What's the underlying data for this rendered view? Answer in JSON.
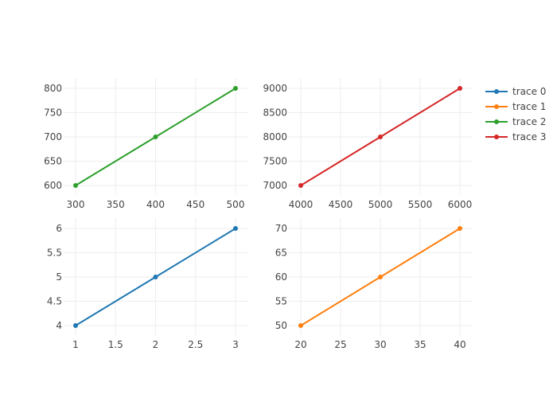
{
  "chart_data": {
    "type": "line",
    "legend": {
      "placement": "top-right",
      "entries": [
        {
          "name": "trace 0",
          "color": "#1f77b4"
        },
        {
          "name": "trace 1",
          "color": "#ff7f0e"
        },
        {
          "name": "trace 2",
          "color": "#2ca02c"
        },
        {
          "name": "trace 3",
          "color": "#d62728"
        }
      ]
    },
    "grid": true,
    "subplots": [
      {
        "id": "top-left",
        "series": [
          {
            "name": "trace 2",
            "color": "#2ca02c",
            "x": [
              300,
              400,
              500
            ],
            "y": [
              600,
              700,
              800
            ]
          }
        ],
        "xlim": [
          300,
          500
        ],
        "ylim": [
          600,
          800
        ],
        "xticks": [
          300,
          350,
          400,
          450,
          500
        ],
        "xtick_labels": [
          "300",
          "350",
          "400",
          "450",
          "500"
        ],
        "yticks": [
          600,
          650,
          700,
          750,
          800
        ],
        "ytick_labels": [
          "600",
          "650",
          "700",
          "750",
          "800"
        ]
      },
      {
        "id": "top-right",
        "series": [
          {
            "name": "trace 3",
            "color": "#d62728",
            "x": [
              4000,
              5000,
              6000
            ],
            "y": [
              7000,
              8000,
              9000
            ]
          }
        ],
        "xlim": [
          4000,
          6000
        ],
        "ylim": [
          7000,
          9000
        ],
        "xticks": [
          4000,
          4500,
          5000,
          5500,
          6000
        ],
        "xtick_labels": [
          "4000",
          "4500",
          "5000",
          "5500",
          "6000"
        ],
        "yticks": [
          7000,
          7500,
          8000,
          8500,
          9000
        ],
        "ytick_labels": [
          "7000",
          "7500",
          "8000",
          "8500",
          "9000"
        ]
      },
      {
        "id": "bottom-left",
        "series": [
          {
            "name": "trace 0",
            "color": "#1f77b4",
            "x": [
              1,
              2,
              3
            ],
            "y": [
              4,
              5,
              6
            ]
          }
        ],
        "xlim": [
          1,
          3
        ],
        "ylim": [
          4,
          6
        ],
        "xticks": [
          1,
          1.5,
          2,
          2.5,
          3
        ],
        "xtick_labels": [
          "1",
          "1.5",
          "2",
          "2.5",
          "3"
        ],
        "yticks": [
          4,
          4.5,
          5,
          5.5,
          6
        ],
        "ytick_labels": [
          "4",
          "4.5",
          "5",
          "5.5",
          "6"
        ]
      },
      {
        "id": "bottom-right",
        "series": [
          {
            "name": "trace 1",
            "color": "#ff7f0e",
            "x": [
              20,
              30,
              40
            ],
            "y": [
              50,
              60,
              70
            ]
          }
        ],
        "xlim": [
          20,
          40
        ],
        "ylim": [
          50,
          70
        ],
        "xticks": [
          20,
          25,
          30,
          35,
          40
        ],
        "xtick_labels": [
          "20",
          "25",
          "30",
          "35",
          "40"
        ],
        "yticks": [
          50,
          55,
          60,
          65,
          70
        ],
        "ytick_labels": [
          "50",
          "55",
          "60",
          "65",
          "70"
        ]
      }
    ]
  }
}
